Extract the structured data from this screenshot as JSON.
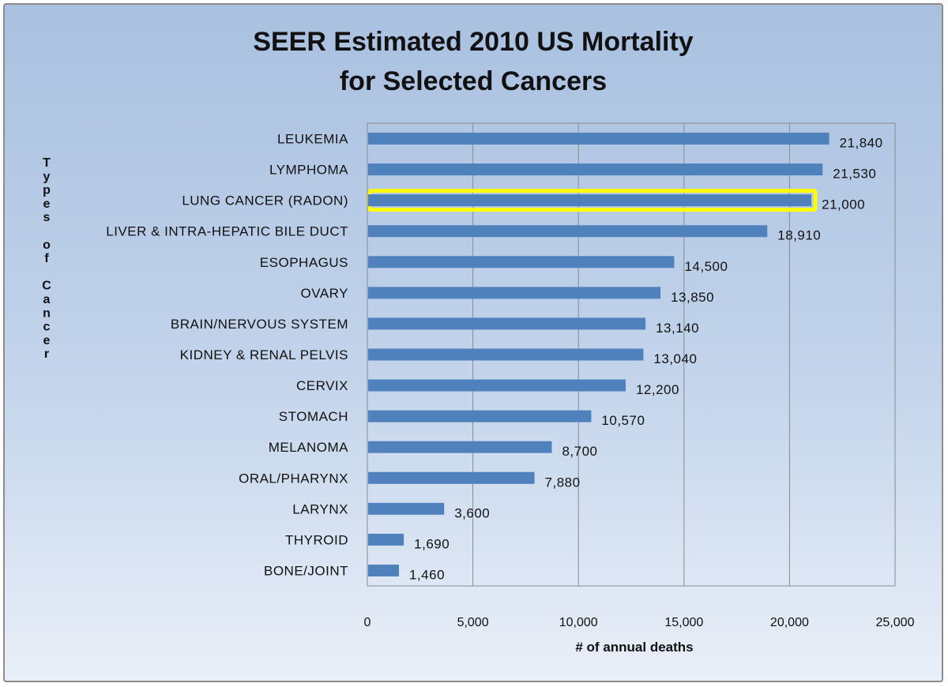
{
  "chart_data": {
    "type": "bar",
    "orientation": "horizontal",
    "title_lines": [
      "SEER Estimated 2010 US Mortality",
      "for Selected Cancers"
    ],
    "xlabel": "# of annual deaths",
    "ylabel": "Types of Cancer",
    "xlim": [
      0,
      25000
    ],
    "xticks": [
      0,
      5000,
      10000,
      15000,
      20000,
      25000
    ],
    "xtick_labels": [
      "0",
      "5,000",
      "10,000",
      "15,000",
      "20,000",
      "25,000"
    ],
    "grid": "vertical",
    "categories": [
      "LEUKEMIA",
      "LYMPHOMA",
      "LUNG CANCER (RADON)",
      "LIVER & INTRA-HEPATIC BILE DUCT",
      "ESOPHAGUS",
      "OVARY",
      "BRAIN/NERVOUS SYSTEM",
      "KIDNEY & RENAL PELVIS",
      "CERVIX",
      "STOMACH",
      "MELANOMA",
      "ORAL/PHARYNX",
      "LARYNX",
      "THYROID",
      "BONE/JOINT"
    ],
    "values": [
      21840,
      21530,
      21000,
      18910,
      14500,
      13850,
      13140,
      13040,
      12200,
      10570,
      8700,
      7880,
      3600,
      1690,
      1460
    ],
    "value_labels": [
      "21,840",
      "21,530",
      "21,000",
      "18,910",
      "14,500",
      "13,850",
      "13,140",
      "13,040",
      "12,200",
      "10,570",
      "8,700",
      "7,880",
      "3,600",
      "1,690",
      "1,460"
    ],
    "highlighted_category": "LUNG CANCER (RADON)",
    "colors": {
      "bar": "#4f81bd",
      "highlight": "#ffff00",
      "grid": "#8a8a8a"
    }
  }
}
